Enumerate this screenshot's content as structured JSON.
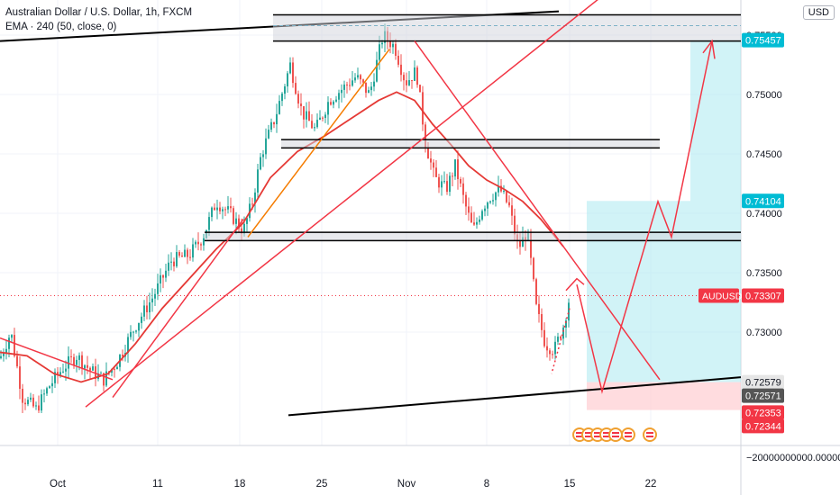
{
  "header": {
    "symbol_title": "Australian Dollar / U.S. Dollar, 1h, FXCM",
    "indicator": "EMA · 240 (50, close, 0)"
  },
  "currency_button": "USD",
  "colors": {
    "up": "#26a69a",
    "down": "#ef5350",
    "ema": "#e53935",
    "drawing": "#f23645",
    "orange": "#f57c00",
    "black": "#000000",
    "target_zone": "#b2ebf2",
    "stop_zone": "#ffcdd2",
    "price_tag": "#f23645",
    "cyan_tag": "#00bcd4",
    "gray_tag": "#555555"
  },
  "chart_data": {
    "type": "candlestick",
    "symbol": "AUDUSD",
    "timeframe": "1h",
    "y_axis": {
      "ticks": [
        "0.73000",
        "0.73500",
        "0.74000",
        "0.74500",
        "0.75000",
        "0.75500"
      ],
      "bottom_label": "−20000000000.00000"
    },
    "x_axis": {
      "ticks": [
        "Oct",
        "11",
        "18",
        "25",
        "Nov",
        "8",
        "15",
        "22"
      ]
    },
    "price_labels": [
      {
        "text": "0.75457",
        "style": "cyan"
      },
      {
        "text": "0.74104",
        "style": "cyan"
      },
      {
        "text": "AUDUSD",
        "style": "red"
      },
      {
        "text": "0.73307",
        "style": "red"
      },
      {
        "text": "0.72579",
        "style": "light"
      },
      {
        "text": "0.72571",
        "style": "dark"
      },
      {
        "text": "0.72353",
        "style": "red"
      },
      {
        "text": "0.72344",
        "style": "red"
      }
    ],
    "current_price": 0.73307,
    "indicator_ema": {
      "length": 50,
      "source": "close"
    },
    "events_icons": [
      "us-flag",
      "us-flag",
      "us-flag",
      "us-flag",
      "us-flag",
      "us-flag",
      "us-flag"
    ]
  }
}
